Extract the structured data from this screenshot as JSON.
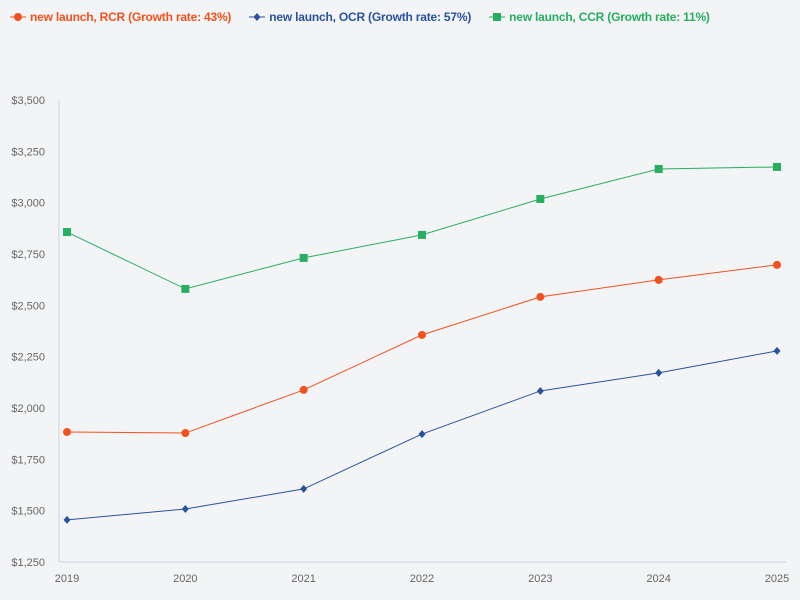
{
  "chart_data": {
    "type": "line",
    "title": "",
    "xlabel": "",
    "ylabel": "",
    "categories": [
      "2019",
      "2020",
      "2021",
      "2022",
      "2023",
      "2024",
      "2025"
    ],
    "ylim": [
      1250,
      3500
    ],
    "yticks": [
      "$1,250",
      "$1,500",
      "$1,750",
      "$2,000",
      "$2,250",
      "$2,500",
      "$2,750",
      "$3,000",
      "$3,250",
      "$3,500"
    ],
    "ytick_values": [
      1250,
      1500,
      1750,
      2000,
      2250,
      2500,
      2750,
      3000,
      3250,
      3500
    ],
    "grid": false,
    "legend_placement": "top-left",
    "series": [
      {
        "name": "new launch, RCR (Growth rate: 43%)",
        "color": "#f4511e",
        "marker": "circle",
        "values": [
          1883,
          1878,
          2088,
          2356,
          2541,
          2624,
          2697
        ]
      },
      {
        "name": "new launch, OCR (Growth rate: 57%)",
        "color": "#2a52a0",
        "marker": "diamond",
        "values": [
          1455,
          1508,
          1606,
          1873,
          2083,
          2171,
          2278
        ]
      },
      {
        "name": "new launch, CCR (Growth rate: 11%)",
        "color": "#27ae60",
        "marker": "square",
        "values": [
          2857,
          2580,
          2731,
          2843,
          3018,
          3164,
          3174
        ]
      }
    ]
  }
}
